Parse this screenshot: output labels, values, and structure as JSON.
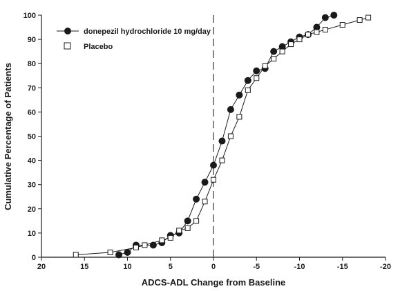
{
  "chart_data": {
    "type": "line",
    "xlabel": "ADCS-ADL Change from Baseline",
    "ylabel": "Cumulative Percentage of Patients",
    "xlim": [
      20,
      -20
    ],
    "ylim": [
      0,
      100
    ],
    "x_ticks": [
      20,
      15,
      10,
      5,
      0,
      -5,
      -10,
      -15,
      -20
    ],
    "x_tick_labels": [
      "20",
      "15",
      "10",
      "5",
      "0",
      "-5",
      "-10",
      "-15",
      "-20"
    ],
    "y_ticks": [
      0,
      10,
      20,
      30,
      40,
      50,
      60,
      70,
      80,
      90,
      100
    ],
    "y_tick_labels": [
      "0",
      "10",
      "20",
      "30",
      "40",
      "50",
      "60",
      "70",
      "80",
      "90",
      "100"
    ],
    "reference_line_x": 0,
    "grid": false,
    "legend_position": "top-left",
    "series": [
      {
        "name": "donepezil hydrochloride 10 mg/day",
        "marker": "filled-circle",
        "color": "#1a1a1a",
        "x": [
          11,
          10,
          9,
          7,
          6,
          5,
          4,
          3,
          2,
          1,
          0,
          -1,
          -2,
          -3,
          -4,
          -5,
          -6,
          -7,
          -8,
          -9,
          -10,
          -11,
          -12,
          -13,
          -14
        ],
        "y": [
          1,
          2,
          5,
          5,
          6,
          9,
          10,
          15,
          24,
          31,
          38,
          48,
          61,
          67,
          73,
          77,
          78,
          85,
          87,
          89,
          91,
          92,
          95,
          99,
          100
        ]
      },
      {
        "name": "Placebo",
        "marker": "open-square",
        "color": "#1a1a1a",
        "x": [
          16,
          12,
          9,
          8,
          6,
          5,
          4,
          3,
          2,
          1,
          0,
          -1,
          -2,
          -3,
          -4,
          -5,
          -6,
          -7,
          -8,
          -9,
          -10,
          -11,
          -12,
          -13,
          -15,
          -17,
          -18
        ],
        "y": [
          1,
          2,
          4,
          5,
          7,
          8,
          11,
          12,
          15,
          23,
          32,
          40,
          50,
          58,
          69,
          74,
          79,
          82,
          85,
          88,
          90,
          92,
          93,
          94,
          96,
          98,
          99
        ]
      }
    ]
  }
}
